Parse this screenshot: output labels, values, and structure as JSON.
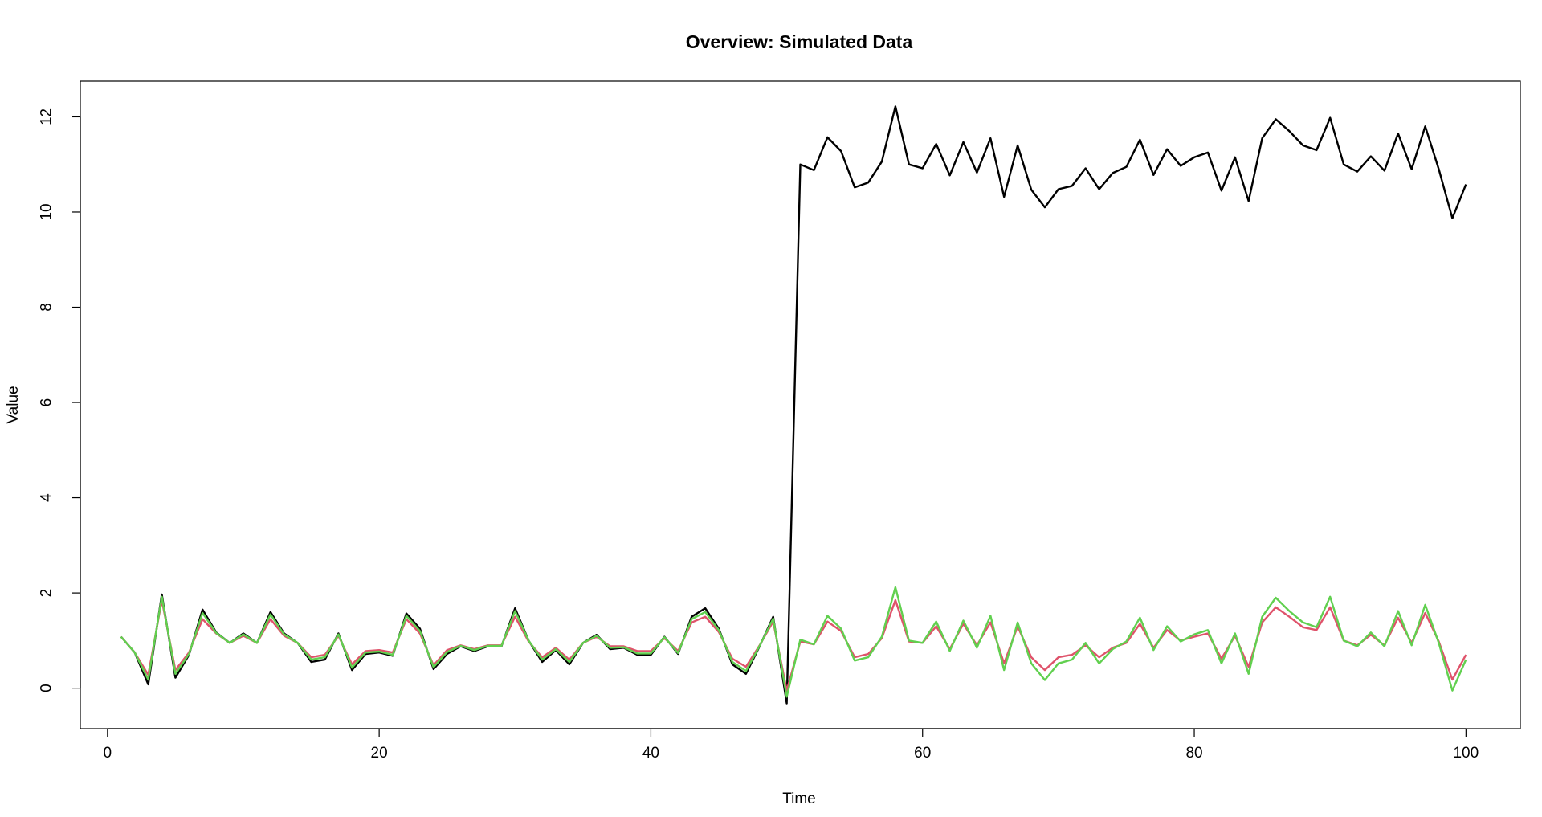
{
  "chart_data": {
    "type": "line",
    "title": "Overview: Simulated Data",
    "xlabel": "Time",
    "ylabel": "Value",
    "xlim": [
      -2,
      104
    ],
    "ylim": [
      -0.85,
      12.75
    ],
    "x_ticks": [
      0,
      20,
      40,
      60,
      80,
      100
    ],
    "y_ticks": [
      0,
      2,
      4,
      6,
      8,
      10,
      12
    ],
    "grid": false,
    "legend": "none",
    "series": [
      {
        "color": "#000000",
        "values": [
          1.08,
          0.75,
          0.08,
          1.97,
          0.22,
          0.7,
          1.65,
          1.17,
          0.95,
          1.15,
          0.95,
          1.6,
          1.15,
          0.95,
          0.55,
          0.6,
          1.15,
          0.38,
          0.72,
          0.75,
          0.68,
          1.57,
          1.25,
          0.4,
          0.72,
          0.88,
          0.78,
          0.88,
          0.88,
          1.68,
          1.0,
          0.55,
          0.8,
          0.5,
          0.95,
          1.12,
          0.82,
          0.85,
          0.7,
          0.7,
          1.08,
          0.72,
          1.5,
          1.68,
          1.25,
          0.5,
          0.3,
          0.88,
          1.5,
          -0.32,
          11.0,
          10.88,
          11.57,
          11.28,
          10.52,
          10.62,
          11.06,
          12.22,
          11.0,
          10.92,
          11.43,
          10.77,
          11.47,
          10.83,
          11.55,
          10.32,
          11.4,
          10.47,
          10.1,
          10.48,
          10.55,
          10.92,
          10.48,
          10.82,
          10.95,
          11.52,
          10.78,
          11.32,
          10.97,
          11.15,
          11.25,
          10.45,
          11.15,
          10.23,
          11.55,
          11.95,
          11.7,
          11.4,
          11.3,
          11.98,
          11.0,
          10.85,
          11.17,
          10.87,
          11.65,
          10.9,
          11.8,
          10.9,
          9.87,
          10.58
        ]
      },
      {
        "color": "#DF536B",
        "values": [
          1.08,
          0.75,
          0.28,
          1.85,
          0.38,
          0.75,
          1.45,
          1.15,
          0.95,
          1.1,
          0.95,
          1.45,
          1.1,
          0.95,
          0.65,
          0.7,
          1.1,
          0.5,
          0.78,
          0.8,
          0.75,
          1.45,
          1.15,
          0.48,
          0.8,
          0.9,
          0.82,
          0.9,
          0.9,
          1.5,
          0.98,
          0.65,
          0.85,
          0.6,
          0.95,
          1.08,
          0.88,
          0.88,
          0.78,
          0.78,
          1.05,
          0.78,
          1.38,
          1.5,
          1.18,
          0.62,
          0.45,
          0.9,
          1.4,
          -0.05,
          0.98,
          0.92,
          1.4,
          1.2,
          0.65,
          0.72,
          1.05,
          1.85,
          0.98,
          0.95,
          1.3,
          0.82,
          1.35,
          0.9,
          1.38,
          0.52,
          1.3,
          0.65,
          0.38,
          0.65,
          0.7,
          0.9,
          0.65,
          0.85,
          0.95,
          1.35,
          0.85,
          1.22,
          1.0,
          1.08,
          1.15,
          0.62,
          1.1,
          0.45,
          1.38,
          1.7,
          1.5,
          1.28,
          1.22,
          1.7,
          1.0,
          0.9,
          1.12,
          0.9,
          1.48,
          0.95,
          1.58,
          0.98,
          0.18,
          0.7
        ]
      },
      {
        "color": "#61D04F",
        "values": [
          1.08,
          0.75,
          0.18,
          1.92,
          0.3,
          0.72,
          1.58,
          1.16,
          0.95,
          1.13,
          0.95,
          1.55,
          1.13,
          0.95,
          0.6,
          0.65,
          1.13,
          0.43,
          0.75,
          0.77,
          0.7,
          1.52,
          1.2,
          0.44,
          0.76,
          0.89,
          0.8,
          0.89,
          0.89,
          1.62,
          1.0,
          0.6,
          0.82,
          0.55,
          0.95,
          1.1,
          0.85,
          0.86,
          0.73,
          0.73,
          1.07,
          0.74,
          1.45,
          1.6,
          1.22,
          0.55,
          0.36,
          0.89,
          1.46,
          -0.18,
          1.02,
          0.92,
          1.52,
          1.25,
          0.58,
          0.65,
          1.08,
          2.12,
          1.0,
          0.95,
          1.4,
          0.78,
          1.42,
          0.85,
          1.52,
          0.38,
          1.38,
          0.52,
          0.17,
          0.52,
          0.6,
          0.95,
          0.52,
          0.82,
          0.98,
          1.48,
          0.8,
          1.3,
          0.98,
          1.13,
          1.22,
          0.52,
          1.15,
          0.3,
          1.5,
          1.9,
          1.62,
          1.38,
          1.28,
          1.92,
          1.0,
          0.88,
          1.17,
          0.88,
          1.62,
          0.9,
          1.75,
          0.95,
          -0.05,
          0.6
        ]
      }
    ]
  }
}
